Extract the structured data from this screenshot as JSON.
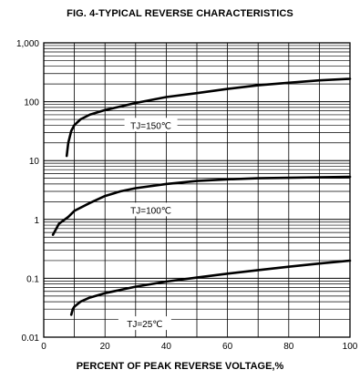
{
  "chart_data": {
    "type": "line",
    "title": "FIG. 4-TYPICAL REVERSE CHARACTERISTICS",
    "xlabel": "PERCENT OF PEAK REVERSE VOLTAGE,%",
    "ylabel": "",
    "xlim": [
      0,
      100
    ],
    "ylim": [
      0.01,
      1000
    ],
    "yscale": "log",
    "grid": true,
    "x_ticks": [
      0,
      20,
      40,
      60,
      80,
      100
    ],
    "x_tick_labels": [
      "0",
      "20",
      "40",
      "60",
      "80",
      "100"
    ],
    "y_ticks": [
      0.01,
      0.1,
      1,
      10,
      100,
      1000
    ],
    "y_tick_labels": [
      "0.01",
      "0.1",
      "1",
      "10",
      "100",
      "1,000"
    ],
    "x_grid": [
      0,
      10,
      20,
      30,
      40,
      50,
      60,
      70,
      80,
      90,
      100
    ],
    "series": [
      {
        "name": "TJ=150℃",
        "x": [
          7.5,
          8,
          9,
          10,
          12,
          15,
          20,
          30,
          40,
          50,
          60,
          70,
          80,
          90,
          100
        ],
        "y": [
          12,
          20,
          32,
          40,
          50,
          60,
          72,
          95,
          120,
          140,
          165,
          190,
          210,
          230,
          245
        ]
      },
      {
        "name": "TJ=100℃",
        "x": [
          3,
          5,
          8,
          10,
          15,
          20,
          25,
          30,
          40,
          50,
          60,
          70,
          80,
          90,
          100
        ],
        "y": [
          0.55,
          0.85,
          1.1,
          1.4,
          1.9,
          2.5,
          3.0,
          3.4,
          4.0,
          4.5,
          4.8,
          5.0,
          5.1,
          5.2,
          5.3
        ]
      },
      {
        "name": "TJ=25℃",
        "x": [
          9,
          9.5,
          10,
          12,
          15,
          20,
          30,
          40,
          50,
          60,
          70,
          80,
          90,
          100
        ],
        "y": [
          0.024,
          0.03,
          0.033,
          0.04,
          0.047,
          0.056,
          0.072,
          0.088,
          0.103,
          0.12,
          0.138,
          0.157,
          0.178,
          0.2
        ]
      }
    ]
  }
}
